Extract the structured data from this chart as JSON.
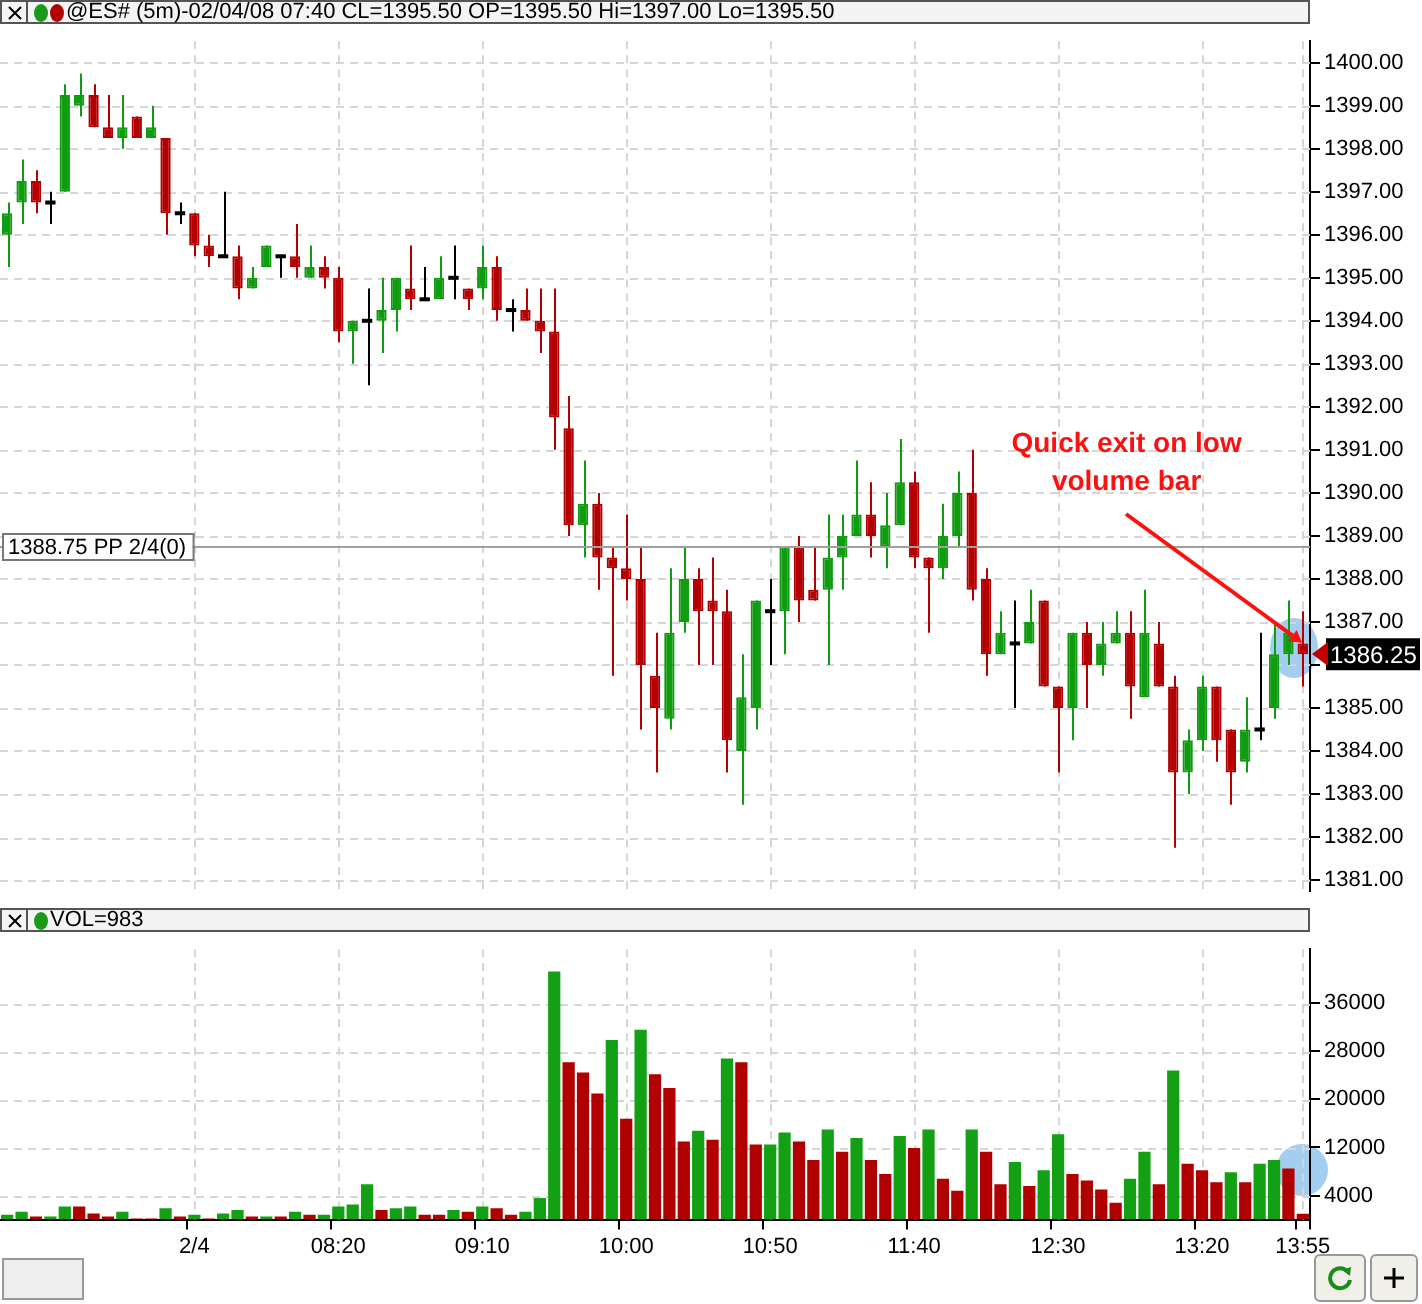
{
  "chart_data": [
    {
      "type": "candlestick",
      "title": "@ES# (5m)-02/04/08 07:40 CL=1395.50 OP=1395.50 Hi=1397.00 Lo=1395.50",
      "categories": [
        null,
        null,
        null,
        null,
        null,
        null,
        null,
        null,
        null,
        null,
        null,
        null,
        null,
        "2/4",
        null,
        null,
        null,
        null,
        null,
        null,
        null,
        null,
        null,
        "08:20",
        null,
        null,
        null,
        null,
        null,
        null,
        null,
        null,
        null,
        "09:10",
        null,
        null,
        null,
        null,
        null,
        null,
        null,
        null,
        null,
        "10:00",
        null,
        null,
        null,
        null,
        null,
        null,
        null,
        null,
        null,
        "10:50",
        null,
        null,
        null,
        null,
        null,
        null,
        null,
        null,
        null,
        "11:40",
        null,
        null,
        null,
        null,
        null,
        null,
        null,
        null,
        null,
        "12:30",
        null,
        null,
        null,
        null,
        null,
        null,
        null,
        null,
        null,
        "13:20",
        null,
        null,
        null,
        null,
        null,
        null,
        "13:55"
      ],
      "ohlc": [
        [
          1396.0,
          1396.75,
          1395.25,
          1396.5
        ],
        [
          1396.75,
          1397.75,
          1396.25,
          1397.25
        ],
        [
          1397.25,
          1397.5,
          1396.5,
          1396.75
        ],
        [
          1396.75,
          1397.0,
          1396.25,
          1396.75
        ],
        [
          1397.0,
          1399.5,
          1397.0,
          1399.25
        ],
        [
          1399.0,
          1399.75,
          1398.75,
          1399.25
        ],
        [
          1399.25,
          1399.5,
          1398.5,
          1398.5
        ],
        [
          1398.5,
          1399.25,
          1398.25,
          1398.25
        ],
        [
          1398.25,
          1399.25,
          1398.0,
          1398.5
        ],
        [
          1398.75,
          1398.75,
          1398.25,
          1398.25
        ],
        [
          1398.25,
          1399.0,
          1398.25,
          1398.5
        ],
        [
          1398.25,
          1398.25,
          1396.0,
          1396.5
        ],
        [
          1396.5,
          1396.75,
          1396.25,
          1396.5
        ],
        [
          1396.5,
          1396.5,
          1395.5,
          1395.75
        ],
        [
          1395.75,
          1396.0,
          1395.25,
          1395.5
        ],
        [
          1395.5,
          1397.0,
          1395.5,
          1395.5
        ],
        [
          1395.5,
          1395.75,
          1394.5,
          1394.75
        ],
        [
          1394.75,
          1395.25,
          1394.75,
          1395.0
        ],
        [
          1395.25,
          1395.75,
          1395.25,
          1395.75
        ],
        [
          1395.5,
          1395.5,
          1395.0,
          1395.5
        ],
        [
          1395.5,
          1396.25,
          1395.0,
          1395.25
        ],
        [
          1395.0,
          1395.75,
          1395.0,
          1395.25
        ],
        [
          1395.25,
          1395.5,
          1394.75,
          1395.0
        ],
        [
          1395.0,
          1395.25,
          1393.5,
          1393.75
        ],
        [
          1393.75,
          1394.0,
          1393.0,
          1394.0
        ],
        [
          1394.0,
          1394.75,
          1392.5,
          1394.0
        ],
        [
          1394.0,
          1395.0,
          1393.25,
          1394.25
        ],
        [
          1394.25,
          1395.0,
          1393.75,
          1395.0
        ],
        [
          1394.75,
          1395.75,
          1394.25,
          1394.5
        ],
        [
          1394.5,
          1395.25,
          1394.5,
          1394.5
        ],
        [
          1394.5,
          1395.5,
          1394.5,
          1395.0
        ],
        [
          1395.0,
          1395.75,
          1394.5,
          1395.0
        ],
        [
          1394.75,
          1394.75,
          1394.25,
          1394.5
        ],
        [
          1394.75,
          1395.75,
          1394.5,
          1395.25
        ],
        [
          1395.25,
          1395.5,
          1394.0,
          1394.25
        ],
        [
          1394.25,
          1394.5,
          1393.75,
          1394.25
        ],
        [
          1394.25,
          1394.75,
          1394.0,
          1394.0
        ],
        [
          1394.0,
          1394.75,
          1393.25,
          1393.75
        ],
        [
          1393.75,
          1394.75,
          1391.0,
          1391.75
        ],
        [
          1391.5,
          1392.25,
          1389.0,
          1389.25
        ],
        [
          1389.25,
          1390.75,
          1388.5,
          1389.75
        ],
        [
          1389.75,
          1390.0,
          1387.75,
          1388.5
        ],
        [
          1388.5,
          1388.75,
          1385.75,
          1388.25
        ],
        [
          1388.25,
          1389.5,
          1387.5,
          1388.0
        ],
        [
          1388.0,
          1388.75,
          1384.5,
          1386.0
        ],
        [
          1385.75,
          1386.75,
          1383.5,
          1385.0
        ],
        [
          1384.75,
          1388.25,
          1384.5,
          1386.75
        ],
        [
          1387.0,
          1388.75,
          1386.75,
          1388.0
        ],
        [
          1388.0,
          1388.25,
          1386.0,
          1387.25
        ],
        [
          1387.5,
          1388.5,
          1386.0,
          1387.25
        ],
        [
          1387.25,
          1387.75,
          1383.5,
          1384.25
        ],
        [
          1384.0,
          1386.25,
          1382.75,
          1385.25
        ],
        [
          1385.0,
          1387.5,
          1384.5,
          1387.5
        ],
        [
          1387.25,
          1388.0,
          1386.0,
          1387.25
        ],
        [
          1387.25,
          1388.75,
          1386.25,
          1388.75
        ],
        [
          1388.75,
          1389.0,
          1387.0,
          1387.5
        ],
        [
          1387.75,
          1388.75,
          1387.5,
          1387.5
        ],
        [
          1387.75,
          1389.5,
          1386.0,
          1388.5
        ],
        [
          1388.5,
          1389.5,
          1387.75,
          1389.0
        ],
        [
          1389.0,
          1390.75,
          1389.0,
          1389.5
        ],
        [
          1389.5,
          1390.25,
          1388.5,
          1389.0
        ],
        [
          1388.75,
          1390.0,
          1388.25,
          1389.25
        ],
        [
          1389.25,
          1391.25,
          1389.25,
          1390.25
        ],
        [
          1390.25,
          1390.5,
          1388.25,
          1388.5
        ],
        [
          1388.5,
          1388.5,
          1386.75,
          1388.25
        ],
        [
          1388.25,
          1389.75,
          1388.0,
          1389.0
        ],
        [
          1389.0,
          1390.5,
          1388.75,
          1390.0
        ],
        [
          1390.0,
          1391.0,
          1387.5,
          1387.75
        ],
        [
          1388.0,
          1388.25,
          1385.75,
          1386.25
        ],
        [
          1386.25,
          1387.25,
          1386.25,
          1386.75
        ],
        [
          1386.5,
          1387.5,
          1385.0,
          1386.5
        ],
        [
          1386.5,
          1387.75,
          1386.5,
          1387.0
        ],
        [
          1387.5,
          1387.5,
          1385.5,
          1385.5
        ],
        [
          1385.5,
          1385.5,
          1383.5,
          1385.0
        ],
        [
          1385.0,
          1386.75,
          1384.25,
          1386.75
        ],
        [
          1386.75,
          1387.0,
          1385.0,
          1386.0
        ],
        [
          1386.0,
          1387.0,
          1385.75,
          1386.5
        ],
        [
          1386.5,
          1387.25,
          1386.5,
          1386.75
        ],
        [
          1386.75,
          1387.25,
          1384.75,
          1385.5
        ],
        [
          1385.25,
          1387.75,
          1385.25,
          1386.75
        ],
        [
          1386.5,
          1387.0,
          1385.5,
          1385.5
        ],
        [
          1385.5,
          1385.75,
          1381.75,
          1383.5
        ],
        [
          1383.5,
          1384.5,
          1383.0,
          1384.25
        ],
        [
          1384.25,
          1385.75,
          1384.0,
          1385.5
        ],
        [
          1385.5,
          1385.5,
          1383.75,
          1384.25
        ],
        [
          1384.5,
          1384.5,
          1382.75,
          1383.5
        ],
        [
          1383.75,
          1385.25,
          1383.5,
          1384.5
        ],
        [
          1384.5,
          1386.75,
          1384.25,
          1384.5
        ],
        [
          1385.0,
          1387.0,
          1384.75,
          1386.25
        ],
        [
          1386.25,
          1387.5,
          1386.0,
          1386.75
        ],
        [
          1386.5,
          1387.25,
          1385.5,
          1386.25
        ]
      ],
      "colors": [
        "#109c10",
        "#109c10",
        "#b40000",
        "#000000",
        "#109c10",
        "#109c10",
        "#b40000",
        "#b40000",
        "#109c10",
        "#b40000",
        "#109c10",
        "#b40000",
        "#000000",
        "#b40000",
        "#b40000",
        "#000000",
        "#b40000",
        "#109c10",
        "#109c10",
        "#000000",
        "#b40000",
        "#109c10",
        "#b40000",
        "#b40000",
        "#109c10",
        "#000000",
        "#109c10",
        "#109c10",
        "#b40000",
        "#000000",
        "#109c10",
        "#000000",
        "#b40000",
        "#109c10",
        "#b40000",
        "#000000",
        "#b40000",
        "#b40000",
        "#b40000",
        "#b40000",
        "#109c10",
        "#b40000",
        "#b40000",
        "#b40000",
        "#b40000",
        "#b40000",
        "#109c10",
        "#109c10",
        "#b40000",
        "#b40000",
        "#b40000",
        "#109c10",
        "#109c10",
        "#000000",
        "#109c10",
        "#b40000",
        "#b40000",
        "#109c10",
        "#109c10",
        "#109c10",
        "#b40000",
        "#109c10",
        "#109c10",
        "#b40000",
        "#b40000",
        "#109c10",
        "#109c10",
        "#b40000",
        "#b40000",
        "#109c10",
        "#000000",
        "#109c10",
        "#b40000",
        "#b40000",
        "#109c10",
        "#b40000",
        "#109c10",
        "#109c10",
        "#b40000",
        "#109c10",
        "#b40000",
        "#b40000",
        "#109c10",
        "#109c10",
        "#b40000",
        "#b40000",
        "#109c10",
        "#000000",
        "#109c10",
        "#109c10",
        "#b40000"
      ],
      "ylim": [
        1380.75,
        1400.5
      ],
      "yticks": [
        {
          "value": 1381,
          "label": "1381.00"
        },
        {
          "value": 1382,
          "label": "1382.00"
        },
        {
          "value": 1383,
          "label": "1383.00"
        },
        {
          "value": 1384,
          "label": "1384.00"
        },
        {
          "value": 1385,
          "label": "1385.00"
        },
        {
          "value": 1386,
          "label": null
        },
        {
          "value": 1387,
          "label": "1387.00"
        },
        {
          "value": 1388,
          "label": "1388.00"
        },
        {
          "value": 1389,
          "label": "1389.00"
        },
        {
          "value": 1390,
          "label": "1390.00"
        },
        {
          "value": 1391,
          "label": "1391.00"
        },
        {
          "value": 1392,
          "label": "1392.00"
        },
        {
          "value": 1393,
          "label": "1393.00"
        },
        {
          "value": 1394,
          "label": "1394.00"
        },
        {
          "value": 1395,
          "label": "1395.00"
        },
        {
          "value": 1396,
          "label": "1396.00"
        },
        {
          "value": 1397,
          "label": "1397.00"
        },
        {
          "value": 1398,
          "label": "1398.00"
        },
        {
          "value": 1399,
          "label": "1399.00"
        },
        {
          "value": 1400,
          "label": "1400.00"
        }
      ],
      "grid": true,
      "tick_labels": "y",
      "ref_lines": [
        {
          "axis": "y",
          "value": 1388.75,
          "label": "1388.75 PP 2/4(0)",
          "color": "#a0a0a0"
        }
      ],
      "annotations": [
        {
          "text": "Quick exit on low volume bar",
          "x": "13:55",
          "y": 1386.5
        },
        "1386.25"
      ]
    },
    {
      "type": "bar",
      "title": "VOL=983",
      "categories": [
        null,
        null,
        null,
        null,
        null,
        null,
        null,
        null,
        null,
        null,
        null,
        null,
        null,
        "2/4",
        null,
        null,
        null,
        null,
        null,
        null,
        null,
        null,
        null,
        "08:20",
        null,
        null,
        null,
        null,
        null,
        null,
        null,
        null,
        null,
        "09:10",
        null,
        null,
        null,
        null,
        null,
        null,
        null,
        null,
        null,
        "10:00",
        null,
        null,
        null,
        null,
        null,
        null,
        null,
        null,
        null,
        "10:50",
        null,
        null,
        null,
        null,
        null,
        null,
        null,
        null,
        null,
        "11:40",
        null,
        null,
        null,
        null,
        null,
        null,
        null,
        null,
        null,
        "12:30",
        null,
        null,
        null,
        null,
        null,
        null,
        null,
        null,
        null,
        "13:20",
        null,
        null,
        null,
        null,
        null,
        null,
        "13:55"
      ],
      "values": [
        800,
        1300,
        500,
        500,
        2200,
        2200,
        1000,
        500,
        1300,
        200,
        200,
        1900,
        500,
        800,
        200,
        1000,
        1600,
        500,
        500,
        500,
        1300,
        800,
        800,
        2200,
        2500,
        5900,
        1600,
        1900,
        2200,
        800,
        800,
        1600,
        1300,
        2200,
        1900,
        800,
        1300,
        3600,
        41300,
        26200,
        24500,
        21000,
        29900,
        16800,
        31600,
        24200,
        21900,
        13000,
        14800,
        13300,
        26800,
        26200,
        12500,
        12500,
        14500,
        13000,
        9900,
        15000,
        11300,
        13600,
        9900,
        7600,
        13900,
        11900,
        15000,
        6800,
        4800,
        15000,
        11300,
        5900,
        9600,
        5600,
        8200,
        14200,
        7600,
        6500,
        5000,
        2800,
        6800,
        11300,
        5900,
        24800,
        9300,
        8200,
        6200,
        7900,
        6200,
        9300,
        9900,
        8500,
        983
      ],
      "colors": [
        "#14a014",
        "#14a014",
        "#b00000",
        "#14a014",
        "#14a014",
        "#b00000",
        "#b00000",
        "#b00000",
        "#14a014",
        "#b00000",
        "#b00000",
        "#14a014",
        "#b00000",
        "#14a014",
        "#b00000",
        "#14a014",
        "#14a014",
        "#b00000",
        "#14a014",
        "#b00000",
        "#14a014",
        "#b00000",
        "#14a014",
        "#14a014",
        "#14a014",
        "#14a014",
        "#b00000",
        "#14a014",
        "#14a014",
        "#b00000",
        "#b00000",
        "#14a014",
        "#b00000",
        "#14a014",
        "#b00000",
        "#b00000",
        "#14a014",
        "#14a014",
        "#14a014",
        "#b00000",
        "#b00000",
        "#b00000",
        "#14a014",
        "#b00000",
        "#14a014",
        "#b00000",
        "#b00000",
        "#b00000",
        "#14a014",
        "#b00000",
        "#14a014",
        "#b00000",
        "#b00000",
        "#14a014",
        "#14a014",
        "#b00000",
        "#b00000",
        "#14a014",
        "#b00000",
        "#14a014",
        "#b00000",
        "#b00000",
        "#14a014",
        "#b00000",
        "#14a014",
        "#b00000",
        "#b00000",
        "#14a014",
        "#b00000",
        "#b00000",
        "#14a014",
        "#b00000",
        "#14a014",
        "#14a014",
        "#b00000",
        "#b00000",
        "#b00000",
        "#b00000",
        "#14a014",
        "#14a014",
        "#b00000",
        "#14a014",
        "#b00000",
        "#b00000",
        "#b00000",
        "#14a014",
        "#b00000",
        "#14a014",
        "#14a014",
        "#b00000",
        "#b00000"
      ],
      "ylim": [
        0,
        45000
      ],
      "yticks": [
        4000,
        12000,
        20000,
        28000,
        36000
      ],
      "grid": true
    }
  ]
}
